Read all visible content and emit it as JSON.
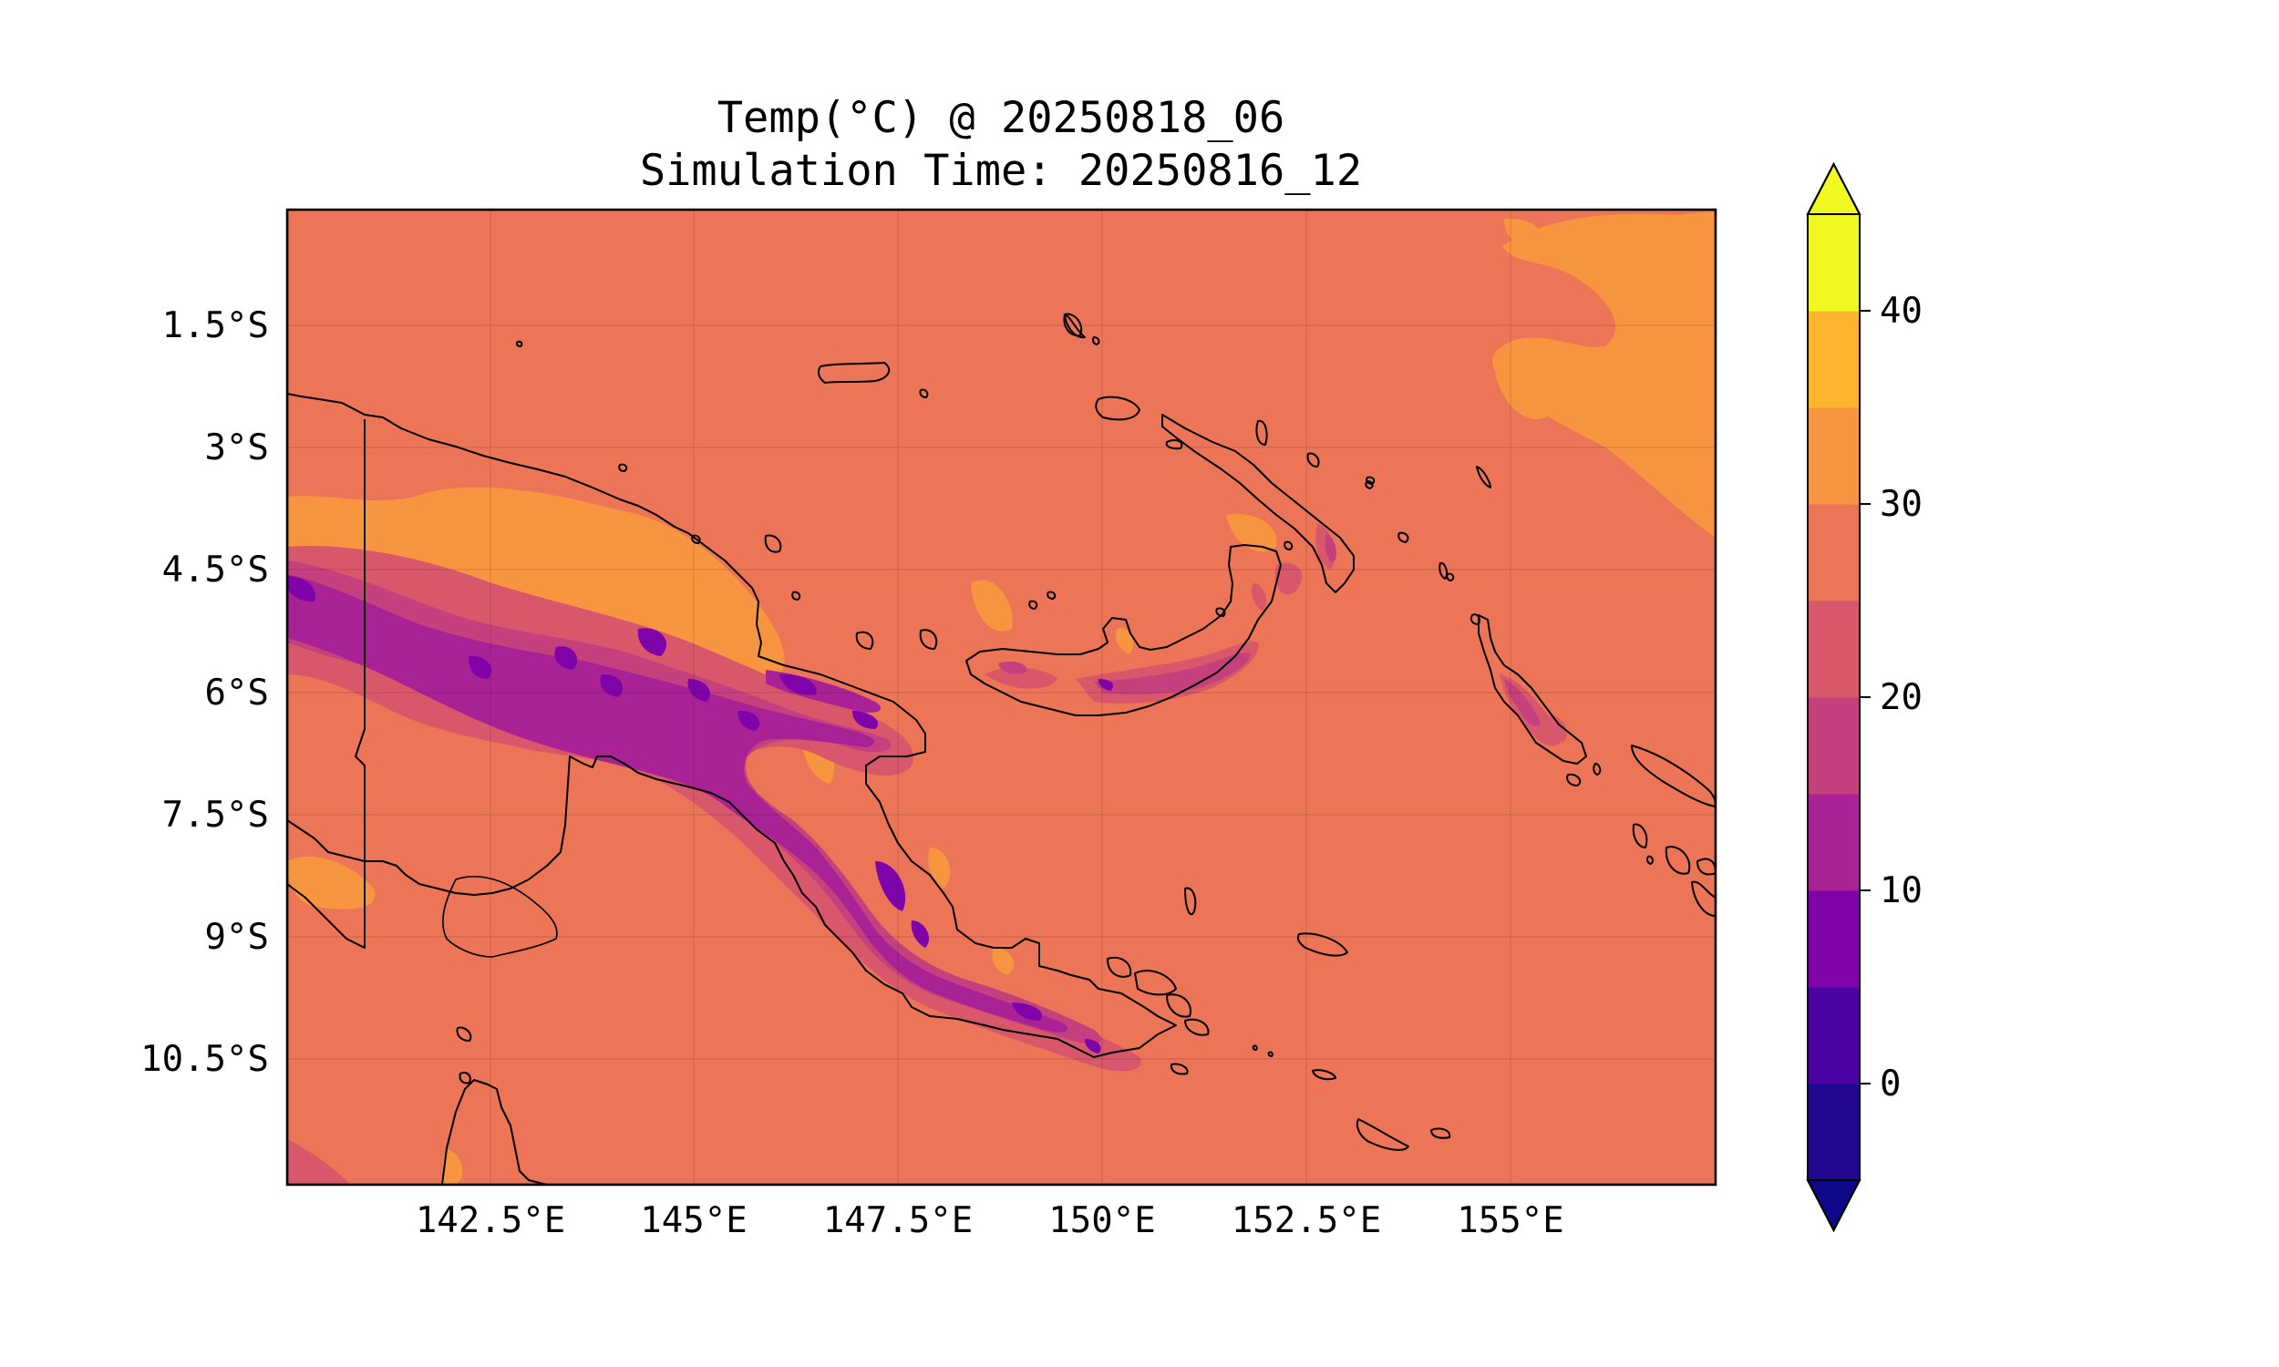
{
  "title": {
    "line1": "Temp(°C) @ 20250818_06",
    "line2": "Simulation Time: 20250816_12"
  },
  "map": {
    "region": "Papua New Guinea",
    "x_ticks": [
      "142.5°E",
      "145°E",
      "147.5°E",
      "150°E",
      "152.5°E",
      "155°E"
    ],
    "y_ticks": [
      "1.5°S",
      "3°S",
      "4.5°S",
      "6°S",
      "7.5°S",
      "9°S",
      "10.5°S"
    ],
    "lon_range": [
      139.0,
      156.5
    ],
    "lat_range": [
      -12.0,
      0.0
    ],
    "background_level_color": "#eb7556"
  },
  "colorbar": {
    "ticks": [
      "0",
      "10",
      "20",
      "30",
      "40"
    ],
    "tick_values": [
      0,
      10,
      20,
      30,
      40
    ],
    "range": [
      -5,
      45
    ],
    "extend": "both",
    "levels": [
      {
        "from": -5,
        "to": 0,
        "color": "#220690"
      },
      {
        "from": 0,
        "to": 5,
        "color": "#4c02a1"
      },
      {
        "from": 5,
        "to": 10,
        "color": "#7e03a8"
      },
      {
        "from": 10,
        "to": 15,
        "color": "#a82296"
      },
      {
        "from": 15,
        "to": 20,
        "color": "#c5417d"
      },
      {
        "from": 20,
        "to": 25,
        "color": "#d8576b"
      },
      {
        "from": 25,
        "to": 30,
        "color": "#eb7556"
      },
      {
        "from": 30,
        "to": 35,
        "color": "#f89540"
      },
      {
        "from": 35,
        "to": 40,
        "color": "#fdb42f"
      },
      {
        "from": 40,
        "to": 45,
        "color": "#f0f921"
      }
    ],
    "under_color": "#0d0887",
    "over_color": "#f0f921"
  }
}
